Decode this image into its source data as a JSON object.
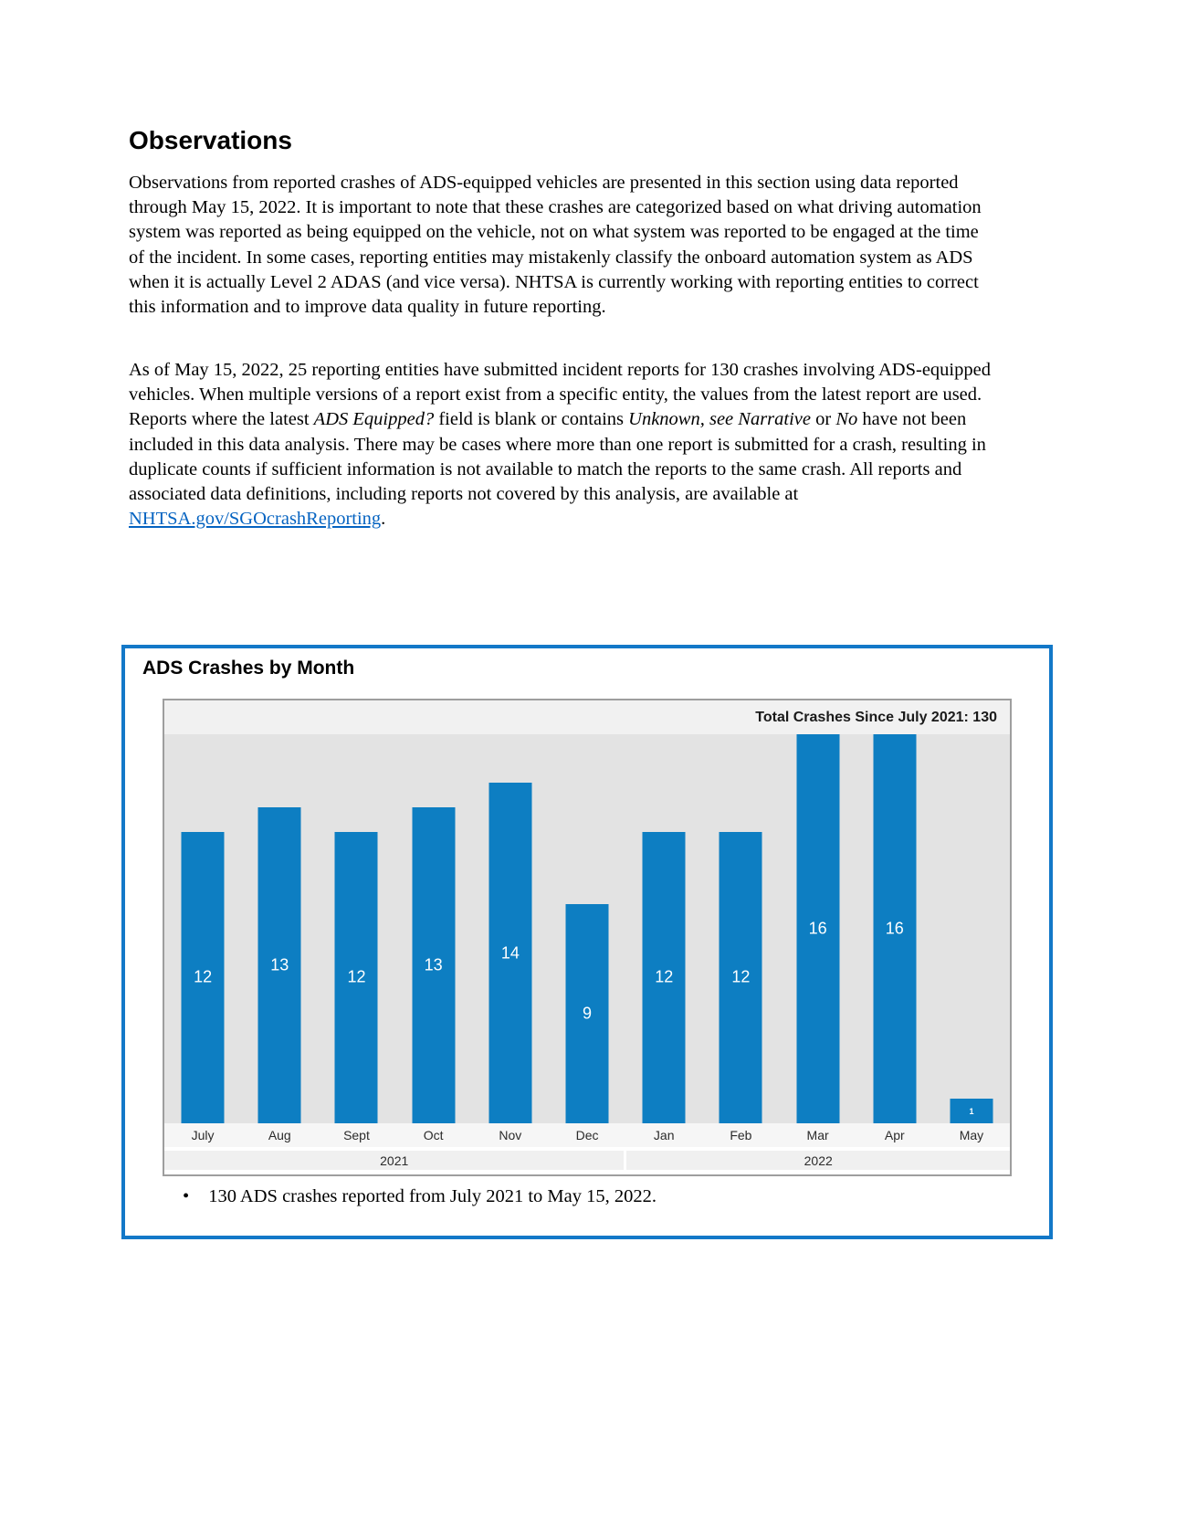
{
  "document": {
    "heading": "Observations",
    "paragraph1": "Observations from reported crashes of ADS-equipped vehicles are presented in this section using data reported through May 15, 2022. It is important to note that these crashes are categorized based on what driving automation system was reported as being equipped on the vehicle, not on what system was reported to be engaged at the time of the incident. In some cases, reporting entities may mistakenly classify the onboard automation system as ADS when it is actually Level 2 ADAS (and vice versa). NHTSA is currently working with reporting entities to correct this information and to improve data quality in future reporting.",
    "paragraph2_segments": [
      {
        "text": "As of May 15, 2022, 25 reporting entities have submitted incident reports for 130 crashes involving ADS-equipped vehicles. When multiple versions of a report exist from a specific entity, the values from the latest report are used. Reports where the latest "
      },
      {
        "text": "ADS Equipped?",
        "style": "italic"
      },
      {
        "text": " field is blank or contains "
      },
      {
        "text": "Unknown, see Narrative",
        "style": "italic"
      },
      {
        "text": " or "
      },
      {
        "text": "No",
        "style": "italic"
      },
      {
        "text": " have not been included in this data analysis. There may be cases where more than one report is submitted for a crash, resulting in duplicate counts if sufficient information is not available to match the reports to the same crash. All reports and associated data definitions, including reports not covered by this analysis, are available at "
      },
      {
        "text": "NHTSA.gov/SGOcrashReporting",
        "style": "link",
        "name": "sgo-crash-reporting-link"
      },
      {
        "text": "."
      }
    ]
  },
  "chart_box": {
    "title": "ADS Crashes by Month",
    "bullet_text": "130 ADS crashes reported from July 2021 to May 15, 2022."
  },
  "chart_data": {
    "type": "bar",
    "title": "ADS Crashes by Month",
    "annotation": "Total Crashes Since July 2021: 130",
    "categories": [
      "July",
      "Aug",
      "Sept",
      "Oct",
      "Nov",
      "Dec",
      "Jan",
      "Feb",
      "Mar",
      "Apr",
      "May"
    ],
    "values": [
      12,
      13,
      12,
      13,
      14,
      9,
      12,
      12,
      16,
      16,
      1
    ],
    "year_groups": [
      {
        "label": "2021",
        "months": 6
      },
      {
        "label": "2022",
        "months": 5
      }
    ],
    "ylim": [
      0,
      16
    ],
    "grid": false,
    "legend": false,
    "bar_color": "#0d7ec2",
    "value_label_color": "#ffffff"
  },
  "colors": {
    "box_border": "#1378c8",
    "chart_border": "#9e9e9e",
    "plot_bg": "#e3e3e3",
    "header_band_bg": "#f1f1f1",
    "month_band_bg": "#f6f6f6",
    "year_band_bg": "#f0f0f0",
    "link": "#0563c1",
    "bar": "#0d7ec2"
  }
}
